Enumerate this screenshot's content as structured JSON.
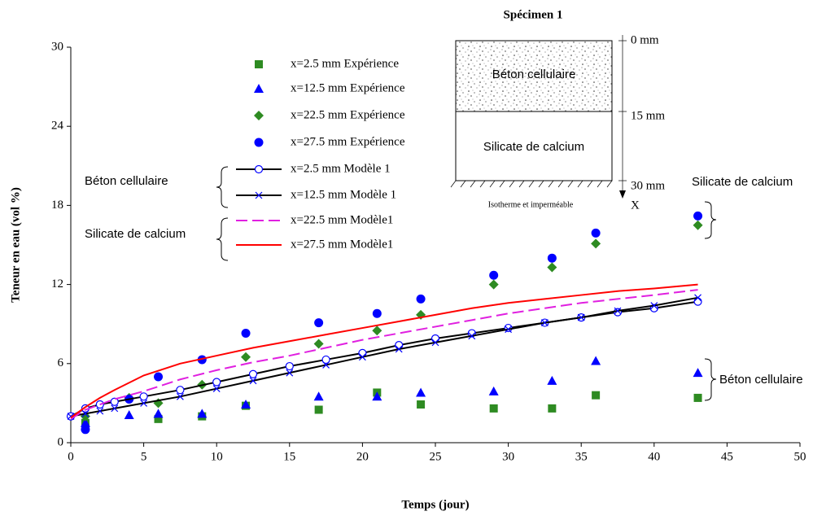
{
  "chart_data": {
    "type": "line",
    "xlabel": "Temps (jour)",
    "ylabel": "Teneur en eau (vol %)",
    "xlim": [
      0,
      50
    ],
    "xticks": [
      0,
      5,
      10,
      15,
      20,
      25,
      30,
      35,
      40,
      45,
      50
    ],
    "ylim": [
      0,
      30
    ],
    "yticks": [
      0,
      6,
      12,
      18,
      24,
      30
    ],
    "grid": false,
    "series": [
      {
        "name": "x=2.5 mm Expérience",
        "color": "#2e8b22",
        "marker": "square",
        "line": "none",
        "x": [
          1,
          6,
          9,
          12,
          17,
          21,
          24,
          29,
          33,
          36,
          43
        ],
        "values": [
          1.5,
          1.8,
          2.0,
          2.8,
          2.5,
          3.8,
          2.9,
          2.6,
          2.6,
          3.6,
          3.4
        ]
      },
      {
        "name": "x=12.5 mm Expérience",
        "color": "#0000ff",
        "marker": "triangle",
        "line": "none",
        "x": [
          1,
          4,
          6,
          9,
          12,
          17,
          21,
          24,
          29,
          33,
          36,
          43
        ],
        "values": [
          1.5,
          2.1,
          2.2,
          2.2,
          2.9,
          3.5,
          3.5,
          3.8,
          3.9,
          4.7,
          6.2,
          5.3
        ]
      },
      {
        "name": "x=22.5 mm Expérience",
        "color": "#2e8b22",
        "marker": "diamond",
        "line": "none",
        "x": [
          1,
          4,
          6,
          9,
          12,
          17,
          21,
          24,
          29,
          33,
          36,
          43
        ],
        "values": [
          2.0,
          3.4,
          3.0,
          4.4,
          6.5,
          7.5,
          8.5,
          9.7,
          12.0,
          13.3,
          15.1,
          16.5
        ]
      },
      {
        "name": "x=27.5 mm Expérience",
        "color": "#0000ff",
        "marker": "circle",
        "line": "none",
        "x": [
          1,
          4,
          6,
          9,
          12,
          17,
          21,
          24,
          29,
          33,
          36,
          43
        ],
        "values": [
          1.0,
          3.3,
          5.0,
          6.3,
          8.3,
          9.1,
          9.8,
          10.9,
          12.7,
          14.0,
          15.9,
          17.2
        ]
      },
      {
        "name": "x=2.5 mm Modèle 1",
        "color": "#000000",
        "marker": "open-circle",
        "marker_color": "#0000ff",
        "line": "solid",
        "x": [
          0,
          1,
          2,
          3,
          5,
          7.5,
          10,
          12.5,
          15,
          17.5,
          20,
          22.5,
          25,
          27.5,
          30,
          32.5,
          35,
          37.5,
          40,
          43
        ],
        "values": [
          2.0,
          2.6,
          2.9,
          3.1,
          3.5,
          4.0,
          4.6,
          5.2,
          5.8,
          6.3,
          6.8,
          7.4,
          7.9,
          8.3,
          8.7,
          9.1,
          9.5,
          9.9,
          10.2,
          10.7
        ]
      },
      {
        "name": "x=12.5 mm Modèle 1",
        "color": "#000000",
        "marker": "cross",
        "marker_color": "#0000ff",
        "line": "solid",
        "x": [
          0,
          1,
          2,
          3,
          5,
          7.5,
          10,
          12.5,
          15,
          17.5,
          20,
          22.5,
          25,
          27.5,
          30,
          32.5,
          35,
          37.5,
          40,
          43
        ],
        "values": [
          2.0,
          2.2,
          2.4,
          2.6,
          3.0,
          3.5,
          4.1,
          4.7,
          5.3,
          5.9,
          6.5,
          7.1,
          7.6,
          8.1,
          8.6,
          9.1,
          9.5,
          10.0,
          10.4,
          11.0
        ]
      },
      {
        "name": "x=22.5 mm Modèle1",
        "color": "#e020e0",
        "marker": "none",
        "line": "dashed",
        "x": [
          0,
          1,
          2,
          3,
          5,
          7.5,
          10,
          12.5,
          15,
          17.5,
          20,
          22.5,
          25,
          27.5,
          30,
          32.5,
          35,
          37.5,
          40,
          43
        ],
        "values": [
          1.8,
          2.5,
          2.9,
          3.3,
          3.9,
          4.8,
          5.5,
          6.1,
          6.6,
          7.2,
          7.8,
          8.3,
          8.8,
          9.3,
          9.8,
          10.2,
          10.6,
          10.9,
          11.2,
          11.6
        ]
      },
      {
        "name": "x=27.5 mm Modèle1",
        "color": "#ff0000",
        "marker": "none",
        "line": "solid",
        "x": [
          0,
          1,
          2,
          3,
          5,
          7.5,
          10,
          12.5,
          15,
          17.5,
          20,
          22.5,
          25,
          27.5,
          30,
          32.5,
          35,
          37.5,
          40,
          43
        ],
        "values": [
          1.9,
          2.7,
          3.4,
          4.0,
          5.1,
          6.0,
          6.6,
          7.2,
          7.7,
          8.2,
          8.7,
          9.2,
          9.7,
          10.2,
          10.6,
          10.9,
          11.2,
          11.5,
          11.7,
          12.0
        ]
      }
    ],
    "annotations": [
      "Béton cellulaire",
      "Silicate de calcium",
      "Silicate de calcium",
      "Béton cellulaire"
    ],
    "inset": {
      "title": "Spécimen 1",
      "top_layer": "Béton cellulaire",
      "bottom_layer": "Silicate de calcium",
      "depths": [
        "0 mm",
        "15 mm",
        "30 mm"
      ],
      "axis": "X",
      "boundary": "Isotherme et imperméable"
    }
  }
}
